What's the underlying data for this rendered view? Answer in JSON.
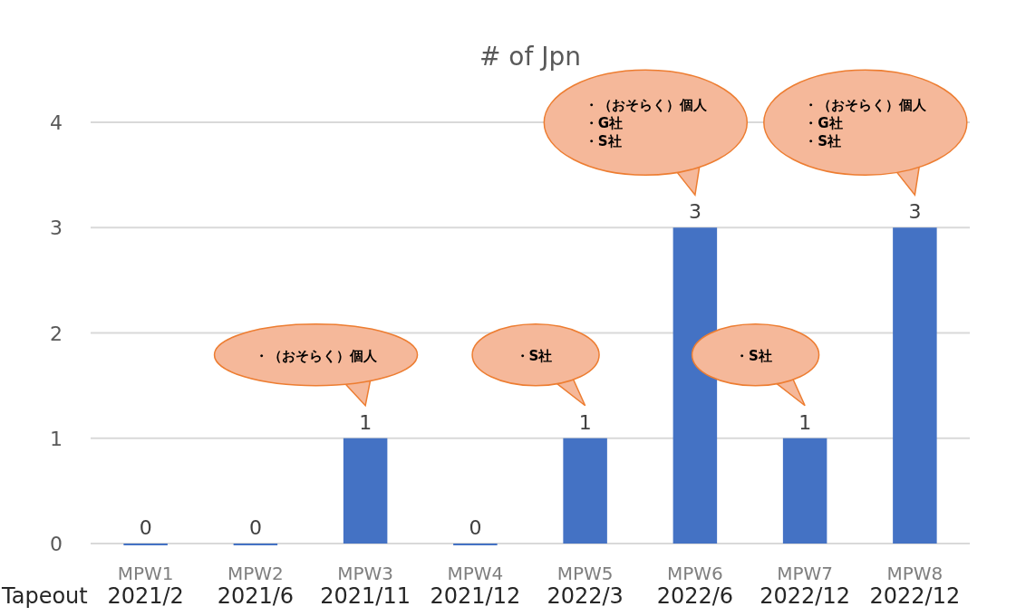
{
  "chart_data": {
    "type": "bar",
    "title": "# of Jpn",
    "categories": [
      "MPW1\n2021/2",
      "MPW2\n2021/6",
      "MPW3\n2021/11",
      "MPW4\n2021/12",
      "MPW5\n2022/3",
      "MPW6\n2022/6",
      "MPW7\n2022/12",
      "MPW8\n2022/12"
    ],
    "values": [
      0,
      0,
      1,
      0,
      1,
      3,
      1,
      3
    ],
    "color": "#4472c4",
    "ylim": [
      0,
      4
    ],
    "yticks": [
      0,
      1,
      2,
      3,
      4
    ],
    "grid": "y",
    "data_labels": true,
    "annotations": [
      "Tapeout",
      "・（おそらく）個人",
      "・S社",
      "・（おそらく）個人・G社・S社",
      "・S社",
      "・（おそらく）個人・G社・S社"
    ]
  }
}
